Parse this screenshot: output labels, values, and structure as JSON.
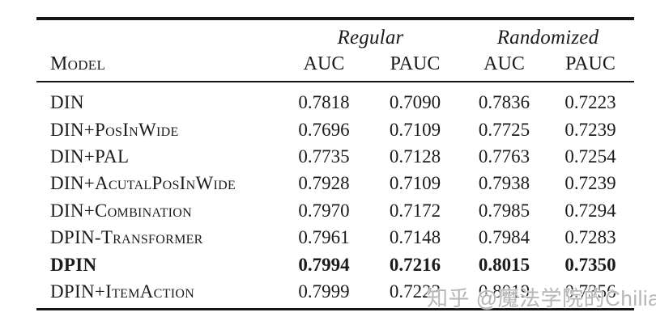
{
  "watermark": {
    "text": "知乎 @魔法学院的Chilia"
  },
  "table": {
    "group_headers": [
      {
        "label": "Regular"
      },
      {
        "label": "Randomized"
      }
    ],
    "model_header": "Model",
    "sub_headers": [
      "AUC",
      "PAUC",
      "AUC",
      "PAUC"
    ],
    "rows": [
      {
        "model": "DIN",
        "values": [
          "0.7818",
          "0.7090",
          "0.7836",
          "0.7223"
        ]
      },
      {
        "model": "DIN+PosInWide",
        "values": [
          "0.7696",
          "0.7109",
          "0.7725",
          "0.7239"
        ]
      },
      {
        "model": "DIN+PAL",
        "values": [
          "0.7735",
          "0.7128",
          "0.7763",
          "0.7254"
        ]
      },
      {
        "model": "DIN+AcutalPosInWide",
        "values": [
          "0.7928",
          "0.7109",
          "0.7938",
          "0.7239"
        ]
      },
      {
        "model": "DIN+Combination",
        "values": [
          "0.7970",
          "0.7172",
          "0.7985",
          "0.7294"
        ]
      },
      {
        "model": "DPIN-Transformer",
        "values": [
          "0.7961",
          "0.7148",
          "0.7984",
          "0.7283"
        ]
      },
      {
        "model": "DPIN",
        "values": [
          "0.7994",
          "0.7216",
          "0.8015",
          "0.7350"
        ],
        "bold": true
      },
      {
        "model": "DPIN+ItemAction",
        "values": [
          "0.7999",
          "0.7223",
          "0.8019",
          "0.7356"
        ]
      }
    ]
  }
}
